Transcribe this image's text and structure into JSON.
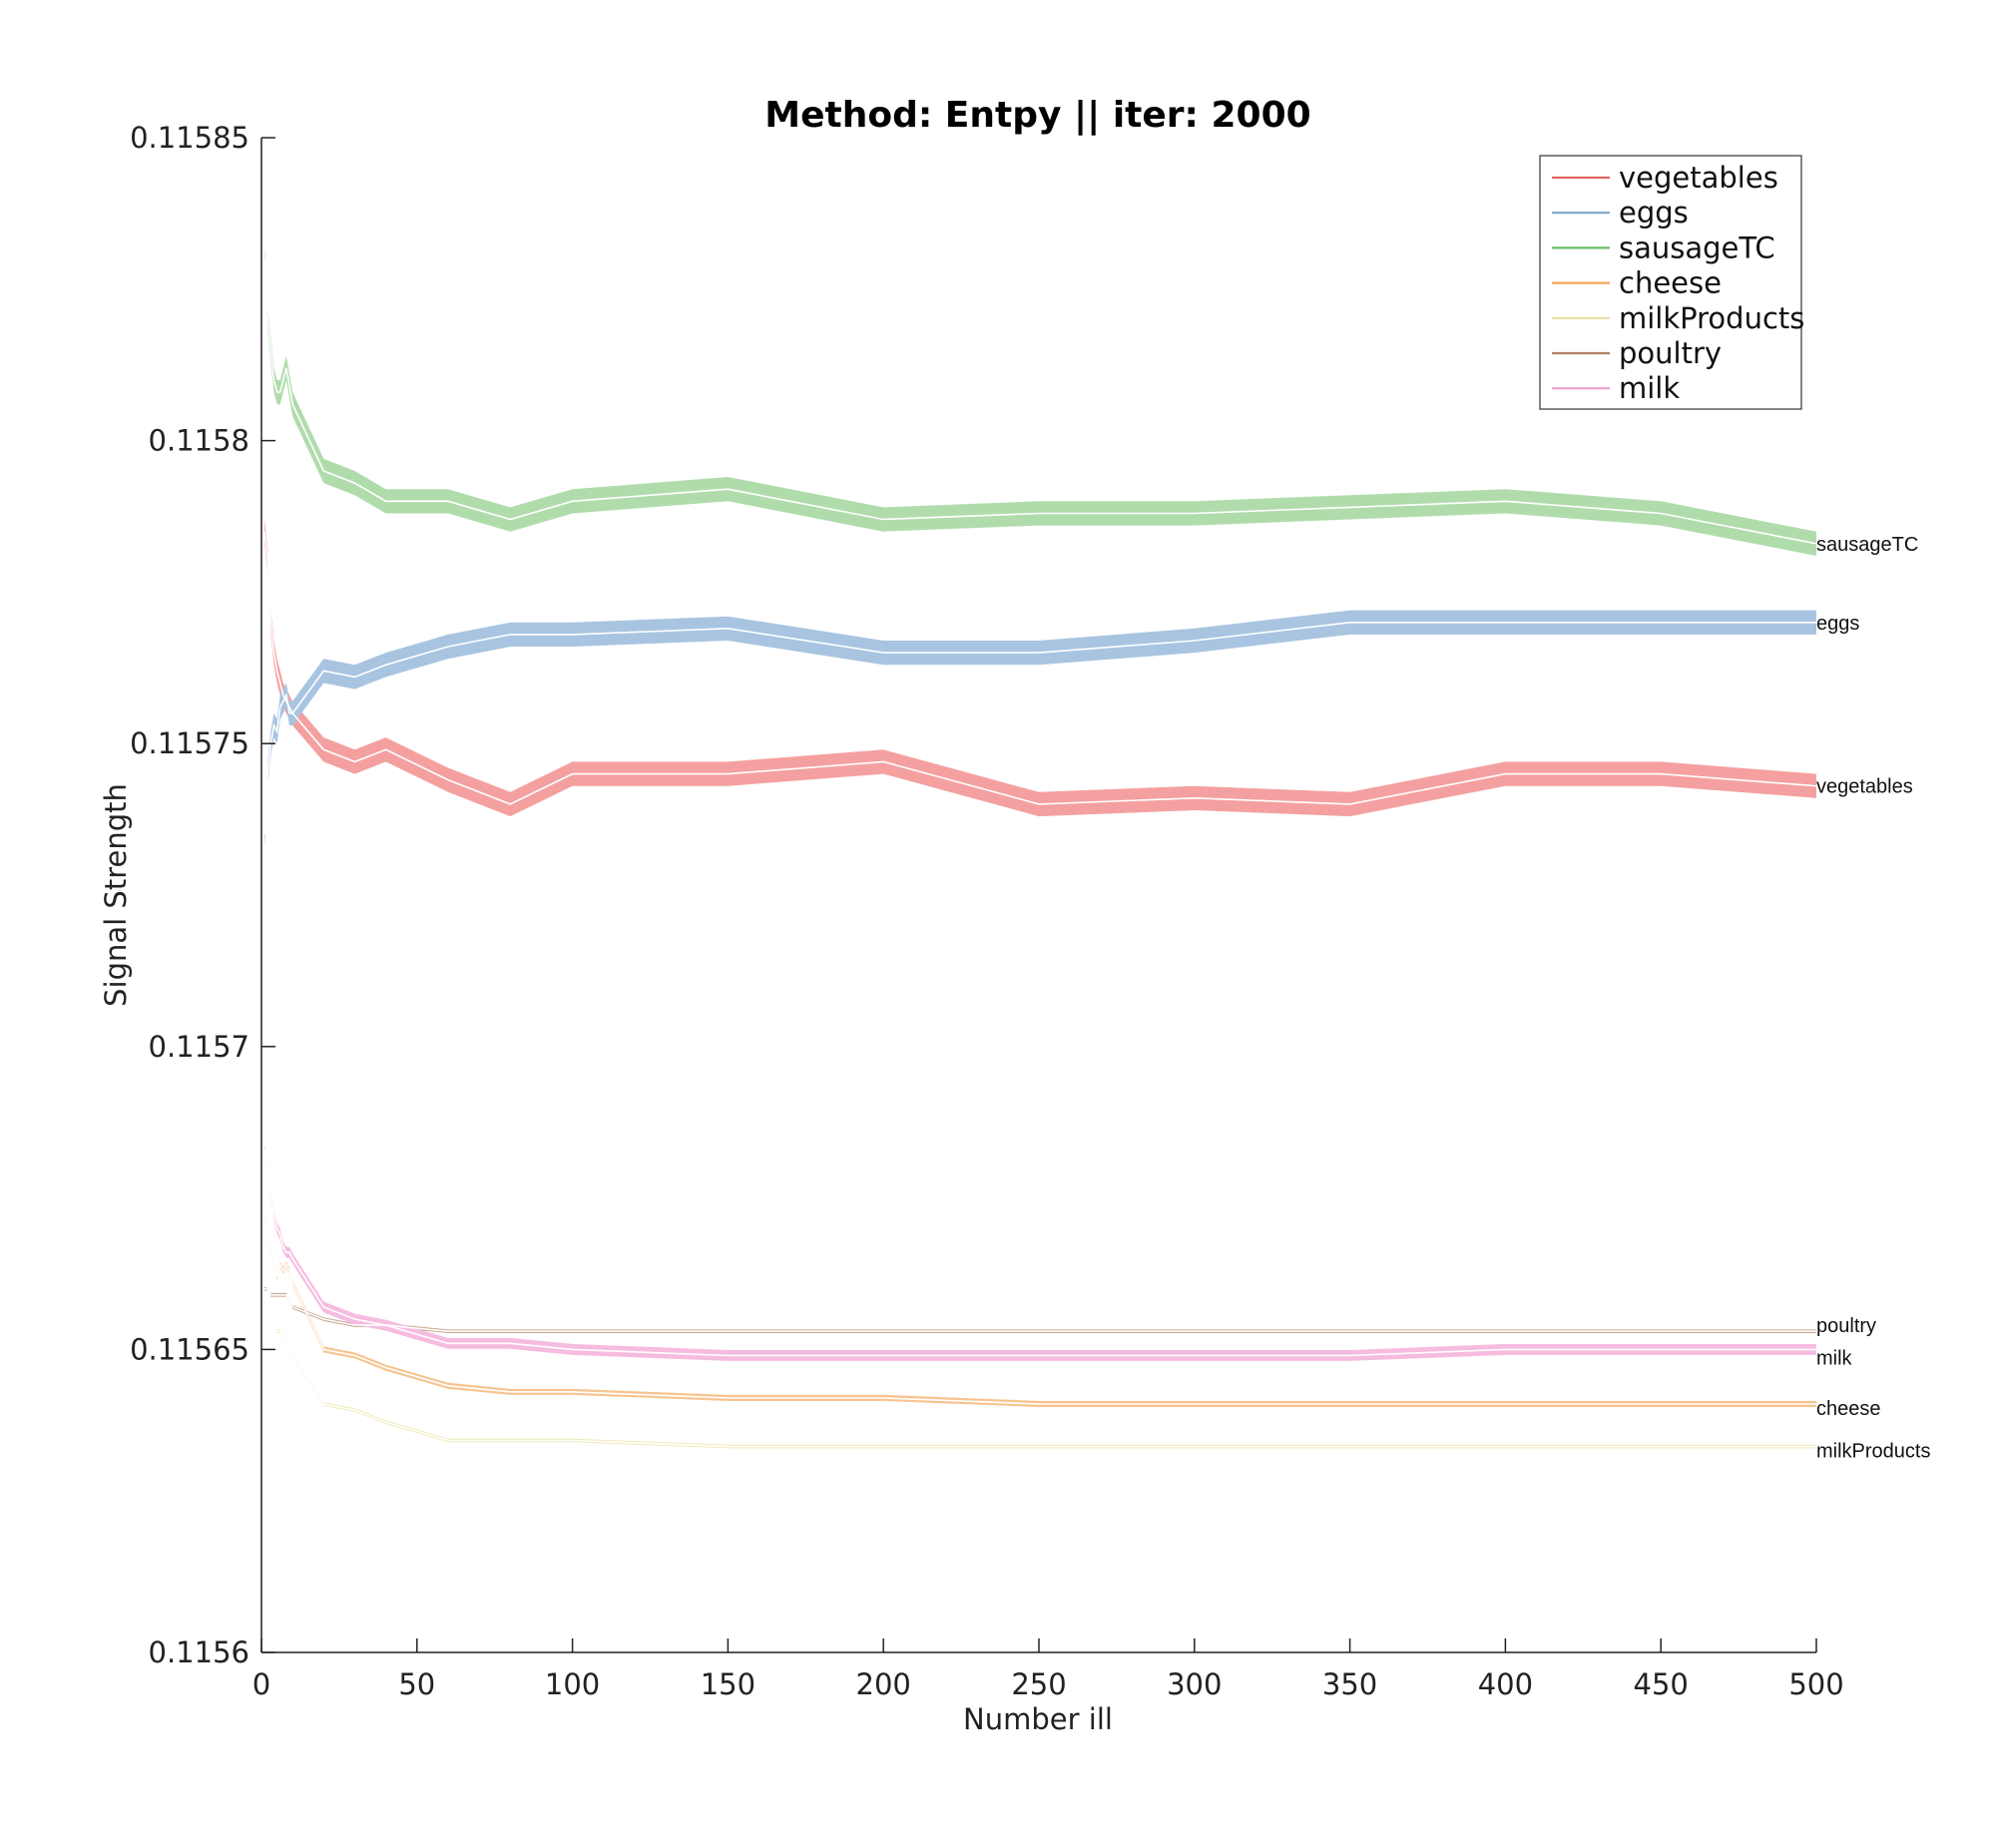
{
  "chart_data": {
    "type": "line",
    "title": "Method: Entpy || iter: 2000",
    "xlabel": "Number ill",
    "ylabel": "Signal Strength",
    "xlim": [
      0,
      500
    ],
    "ylim": [
      0.1156,
      0.11585
    ],
    "xticks": [
      0,
      50,
      100,
      150,
      200,
      250,
      300,
      350,
      400,
      450,
      500
    ],
    "xtick_labels": [
      "0",
      "50",
      "100",
      "150",
      "200",
      "250",
      "300",
      "350",
      "400",
      "450",
      "500"
    ],
    "yticks": [
      0.1156,
      0.11565,
      0.1157,
      0.11575,
      0.1158,
      0.11585
    ],
    "ytick_labels": [
      "0.1156",
      "0.11565",
      "0.1157",
      "0.11575",
      "0.1158",
      "0.11585"
    ],
    "grid": false,
    "legend_position": "top-right",
    "series": [
      {
        "name": "vegetables",
        "color": "#e06666",
        "band_color": "#f4a0a0",
        "band_half_width": 2e-06,
        "x": [
          1,
          2,
          3,
          4,
          5,
          6,
          7,
          8,
          9,
          10,
          20,
          30,
          40,
          60,
          80,
          100,
          150,
          200,
          250,
          300,
          350,
          400,
          450,
          500
        ],
        "values": [
          0.115785,
          0.11578,
          0.11577,
          0.115765,
          0.115762,
          0.11576,
          0.115758,
          0.115757,
          0.115756,
          0.115755,
          0.115749,
          0.115747,
          0.115749,
          0.115744,
          0.11574,
          0.115745,
          0.115745,
          0.115747,
          0.11574,
          0.115741,
          0.11574,
          0.115745,
          0.115745,
          0.115743
        ]
      },
      {
        "name": "eggs",
        "color": "#7aa6cc",
        "band_color": "#a8c4e0",
        "band_half_width": 2e-06,
        "x": [
          1,
          2,
          3,
          4,
          5,
          6,
          7,
          8,
          9,
          10,
          20,
          30,
          40,
          60,
          80,
          100,
          150,
          200,
          250,
          300,
          350,
          400,
          450,
          500
        ],
        "values": [
          0.115735,
          0.115745,
          0.11575,
          0.115753,
          0.115752,
          0.115756,
          0.115757,
          0.115758,
          0.115755,
          0.115755,
          0.115762,
          0.115761,
          0.115763,
          0.115766,
          0.115768,
          0.115768,
          0.115769,
          0.115765,
          0.115765,
          0.115767,
          0.11577,
          0.11577,
          0.11577,
          0.11577
        ]
      },
      {
        "name": "sausageTC",
        "color": "#6cbf6c",
        "band_color": "#b0dcac",
        "band_half_width": 2e-06,
        "x": [
          1,
          2,
          3,
          4,
          5,
          6,
          7,
          8,
          9,
          10,
          20,
          30,
          40,
          60,
          80,
          100,
          150,
          200,
          250,
          300,
          350,
          400,
          450,
          500
        ],
        "values": [
          0.11583,
          0.11582,
          0.115815,
          0.11581,
          0.115808,
          0.115808,
          0.11581,
          0.115812,
          0.115809,
          0.115806,
          0.115795,
          0.115793,
          0.11579,
          0.11579,
          0.115787,
          0.11579,
          0.115792,
          0.115787,
          0.115788,
          0.115788,
          0.115789,
          0.11579,
          0.115788,
          0.115783
        ]
      },
      {
        "name": "cheese",
        "color": "#f2a65a",
        "band_color": "#f7c490",
        "band_half_width": 5e-07,
        "x": [
          1,
          2,
          3,
          4,
          5,
          6,
          7,
          8,
          9,
          10,
          20,
          30,
          40,
          60,
          80,
          100,
          150,
          200,
          250,
          300,
          350,
          400,
          450,
          500
        ],
        "values": [
          0.115671,
          0.115668,
          0.115666,
          0.115664,
          0.115662,
          0.115664,
          0.115663,
          0.115664,
          0.115663,
          0.115661,
          0.11565,
          0.115649,
          0.115647,
          0.115644,
          0.115643,
          0.115643,
          0.115642,
          0.115642,
          0.115641,
          0.115641,
          0.115641,
          0.115641,
          0.115641,
          0.115641
        ]
      },
      {
        "name": "milkProducts",
        "color": "#e8e0a0",
        "band_color": "#efe9b8",
        "band_half_width": 3e-07,
        "x": [
          1,
          2,
          3,
          4,
          5,
          6,
          7,
          8,
          9,
          10,
          20,
          30,
          40,
          60,
          80,
          100,
          150,
          200,
          250,
          300,
          350,
          400,
          450,
          500
        ],
        "values": [
          0.115663,
          0.11566,
          0.115656,
          0.115654,
          0.115653,
          0.115653,
          0.115652,
          0.115651,
          0.11565,
          0.115649,
          0.115641,
          0.11564,
          0.115638,
          0.115635,
          0.115635,
          0.115635,
          0.115634,
          0.115634,
          0.115634,
          0.115634,
          0.115634,
          0.115634,
          0.115634,
          0.115634
        ]
      },
      {
        "name": "poultry",
        "color": "#b08060",
        "band_color": "#c9a490",
        "band_half_width": 3e-07,
        "x": [
          1,
          2,
          3,
          4,
          5,
          6,
          7,
          8,
          9,
          10,
          20,
          30,
          40,
          60,
          80,
          100,
          150,
          200,
          250,
          300,
          350,
          400,
          450,
          500
        ],
        "values": [
          0.11566,
          0.11566,
          0.115659,
          0.115659,
          0.115659,
          0.115659,
          0.115659,
          0.115659,
          0.115658,
          0.115657,
          0.115655,
          0.115654,
          0.115654,
          0.115653,
          0.115653,
          0.115653,
          0.115653,
          0.115653,
          0.115653,
          0.115653,
          0.115653,
          0.115653,
          0.115653,
          0.115653
        ]
      },
      {
        "name": "milk",
        "color": "#f0a0d0",
        "band_color": "#f6bce0",
        "band_half_width": 9e-07,
        "x": [
          1,
          2,
          3,
          4,
          5,
          6,
          7,
          8,
          9,
          10,
          20,
          30,
          40,
          60,
          80,
          100,
          150,
          200,
          250,
          300,
          350,
          400,
          450,
          500
        ],
        "values": [
          0.115683,
          0.115679,
          0.115675,
          0.115672,
          0.11567,
          0.115669,
          0.115667,
          0.115666,
          0.115666,
          0.115665,
          0.115657,
          0.115655,
          0.115654,
          0.115651,
          0.115651,
          0.11565,
          0.115649,
          0.115649,
          0.115649,
          0.115649,
          0.115649,
          0.11565,
          0.11565,
          0.11565
        ]
      }
    ],
    "end_labels": [
      {
        "text": "sausageTC",
        "series": "sausageTC"
      },
      {
        "text": "eggs",
        "series": "eggs"
      },
      {
        "text": "vegetables",
        "series": "vegetables"
      },
      {
        "text": "poultry",
        "series": "poultry"
      },
      {
        "text": "milk",
        "series": "milk"
      },
      {
        "text": "cheese",
        "series": "cheese"
      },
      {
        "text": "milkProducts",
        "series": "milkProducts"
      }
    ]
  }
}
